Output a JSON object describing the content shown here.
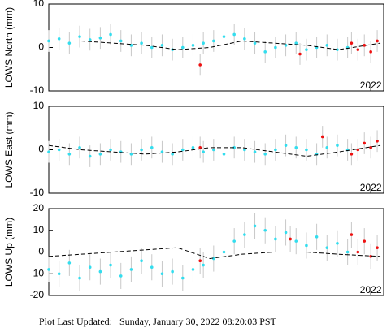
{
  "chart_data": [
    {
      "type": "scatter",
      "ylabel": "LOWS North (mm)",
      "xlim": [
        2021.0,
        2022.04
      ],
      "xticks": [
        2022
      ],
      "ylim": [
        -10,
        10
      ],
      "yticks": [
        10,
        0,
        -10
      ],
      "series": [
        {
          "color": "#33ddee",
          "x": [
            2021.0,
            2021.032,
            2021.064,
            2021.096,
            2021.128,
            2021.16,
            2021.192,
            2021.224,
            2021.256,
            2021.288,
            2021.32,
            2021.352,
            2021.384,
            2021.416,
            2021.448,
            2021.48,
            2021.512,
            2021.544,
            2021.576,
            2021.608,
            2021.64,
            2021.672,
            2021.704,
            2021.736,
            2021.768,
            2021.8,
            2021.832,
            2021.864,
            2021.896,
            2021.928
          ],
          "values": [
            1.5,
            2,
            1,
            2.5,
            1.8,
            2.2,
            3,
            1.5,
            0.5,
            1,
            0,
            0.5,
            -0.5,
            0,
            0.5,
            1,
            1.5,
            2.5,
            3,
            2,
            1,
            -1,
            0,
            0.5,
            1,
            -0.5,
            0,
            0.5,
            -0.5,
            0
          ],
          "errors": [
            2.5,
            2.5,
            2.5,
            2.5,
            2.5,
            2.5,
            2.5,
            2.5,
            2.5,
            2.5,
            2.5,
            2.5,
            2.5,
            2.5,
            2.5,
            2.5,
            2.5,
            2.5,
            2.5,
            2.5,
            2.5,
            2.5,
            2.5,
            2.5,
            2.5,
            2.5,
            2.5,
            2.5,
            2.5,
            2.5
          ]
        },
        {
          "color": "#ee1111",
          "x": [
            2021.47,
            2021.78,
            2021.94,
            2021.96,
            2021.98,
            2022.0,
            2022.02
          ],
          "values": [
            -4,
            -1.5,
            1,
            -0.5,
            0.5,
            -1,
            1.5
          ],
          "errors": [
            2.5,
            2.5,
            2.5,
            2.5,
            2.5,
            2.5,
            2.5
          ]
        },
        {
          "color": "#000000",
          "line": "dashed",
          "x": [
            2021.0,
            2021.1,
            2021.2,
            2021.3,
            2021.4,
            2021.5,
            2021.6,
            2021.7,
            2021.8,
            2021.9,
            2022.03
          ],
          "values": [
            1.5,
            1.5,
            1,
            0.5,
            -0.5,
            0,
            1.5,
            1,
            0.5,
            -0.5,
            1
          ]
        }
      ]
    },
    {
      "type": "scatter",
      "ylabel": "LOWS East (mm)",
      "xlim": [
        2021.0,
        2022.04
      ],
      "xticks": [
        2022
      ],
      "ylim": [
        -10,
        10
      ],
      "yticks": [
        10,
        0,
        -10
      ],
      "series": [
        {
          "color": "#33ddee",
          "x": [
            2021.0,
            2021.032,
            2021.064,
            2021.096,
            2021.128,
            2021.16,
            2021.192,
            2021.224,
            2021.256,
            2021.288,
            2021.32,
            2021.352,
            2021.384,
            2021.416,
            2021.448,
            2021.48,
            2021.512,
            2021.544,
            2021.576,
            2021.608,
            2021.64,
            2021.672,
            2021.704,
            2021.736,
            2021.768,
            2021.8,
            2021.832,
            2021.864,
            2021.896,
            2021.928
          ],
          "values": [
            -0.5,
            0,
            -1,
            0.5,
            -1.5,
            -1,
            0,
            -0.5,
            -1,
            0,
            0.5,
            -0.5,
            -1,
            0,
            0.5,
            -0.5,
            0,
            -1,
            0.5,
            0,
            -0.5,
            -1,
            0,
            1,
            0.5,
            0,
            -1,
            0.5,
            1,
            0
          ],
          "errors": [
            2.5,
            2.5,
            2.5,
            2.5,
            2.5,
            2.5,
            2.5,
            2.5,
            2.5,
            2.5,
            2.5,
            2.5,
            2.5,
            2.5,
            2.5,
            2.5,
            2.5,
            2.5,
            2.5,
            2.5,
            2.5,
            2.5,
            2.5,
            2.5,
            2.5,
            2.5,
            2.5,
            2.5,
            2.5,
            2.5
          ]
        },
        {
          "color": "#ee1111",
          "x": [
            2021.47,
            2021.85,
            2021.94,
            2021.96,
            2021.98,
            2022.0,
            2022.02
          ],
          "values": [
            0.5,
            3,
            -1,
            0,
            1.5,
            0.5,
            2
          ],
          "errors": [
            2.5,
            2.5,
            2.5,
            2.5,
            2.5,
            2.5,
            2.5
          ]
        },
        {
          "color": "#000000",
          "line": "dashed",
          "x": [
            2021.0,
            2021.1,
            2021.2,
            2021.3,
            2021.4,
            2021.5,
            2021.6,
            2021.7,
            2021.8,
            2021.9,
            2022.03
          ],
          "values": [
            1,
            0,
            -0.5,
            -1,
            -0.5,
            0.5,
            0.5,
            -0.5,
            -1.5,
            -0.5,
            1
          ]
        }
      ]
    },
    {
      "type": "scatter",
      "ylabel": "LOWS Up (mm)",
      "xlim": [
        2021.0,
        2022.04
      ],
      "xticks": [
        2022
      ],
      "ylim": [
        -20,
        20
      ],
      "yticks": [
        20,
        10,
        0,
        -10,
        -20
      ],
      "series": [
        {
          "color": "#33ddee",
          "x": [
            2021.0,
            2021.032,
            2021.064,
            2021.096,
            2021.128,
            2021.16,
            2021.192,
            2021.224,
            2021.256,
            2021.288,
            2021.32,
            2021.352,
            2021.384,
            2021.416,
            2021.448,
            2021.48,
            2021.512,
            2021.544,
            2021.576,
            2021.608,
            2021.64,
            2021.672,
            2021.704,
            2021.736,
            2021.768,
            2021.8,
            2021.832,
            2021.864,
            2021.896,
            2021.928
          ],
          "values": [
            -8,
            -10,
            -5,
            -12,
            -7,
            -9,
            -6,
            -11,
            -8,
            -4,
            -7,
            -10,
            -9,
            -12,
            -8,
            -6,
            -3,
            0,
            5,
            8,
            12,
            10,
            6,
            9,
            5,
            3,
            7,
            2,
            4,
            0
          ],
          "errors": [
            6,
            6,
            6,
            6,
            6,
            6,
            6,
            6,
            6,
            6,
            6,
            6,
            6,
            6,
            6,
            6,
            6,
            6,
            6,
            6,
            6,
            6,
            6,
            6,
            6,
            6,
            6,
            6,
            6,
            6
          ]
        },
        {
          "color": "#ee1111",
          "x": [
            2021.47,
            2021.75,
            2021.94,
            2021.96,
            2021.98,
            2022.0,
            2022.02
          ],
          "values": [
            -4,
            6,
            8,
            0,
            5,
            -2,
            2
          ],
          "errors": [
            6,
            6,
            6,
            6,
            6,
            6,
            6
          ]
        },
        {
          "color": "#000000",
          "line": "dashed",
          "x": [
            2021.0,
            2021.1,
            2021.2,
            2021.3,
            2021.4,
            2021.5,
            2021.6,
            2021.7,
            2021.8,
            2021.9,
            2022.03
          ],
          "values": [
            -2,
            -1,
            0,
            1,
            2,
            -3,
            -1,
            0,
            0,
            -1,
            -2
          ]
        }
      ]
    }
  ],
  "footer": "Plot Last Updated:   Sunday, January 30, 2022 08:20:03 PST"
}
